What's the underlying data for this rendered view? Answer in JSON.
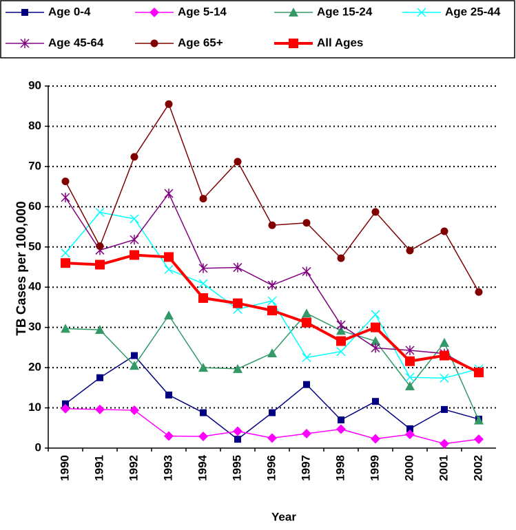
{
  "chart_data": {
    "type": "line",
    "x_label": "Year",
    "y_label": "TB Cases per 100,000",
    "categories": [
      "1990",
      "1991",
      "1992",
      "1993",
      "1994",
      "1995",
      "1996",
      "1997",
      "1998",
      "1999",
      "2000",
      "2001",
      "2002"
    ],
    "series": [
      {
        "name": "Age 0-4",
        "color": "#000080",
        "marker": "square",
        "values": [
          11,
          17.5,
          23,
          13.2,
          8.8,
          2.2,
          8.8,
          15.8,
          7,
          11.6,
          4.8,
          9.6,
          7.2
        ]
      },
      {
        "name": "Age 5-14",
        "color": "#ff00ff",
        "marker": "diamond",
        "values": [
          9.8,
          9.6,
          9.4,
          3,
          2.9,
          4.2,
          2.5,
          3.6,
          4.7,
          2.3,
          3.4,
          1.1,
          2.2
        ]
      },
      {
        "name": "Age 15-24",
        "color": "#339966",
        "marker": "triangle",
        "values": [
          29.7,
          29.4,
          20.5,
          33,
          20,
          19.7,
          23.6,
          33.5,
          29.2,
          26.6,
          15.4,
          26.2,
          6.9
        ]
      },
      {
        "name": "Age 25-44",
        "color": "#00ffff",
        "marker": "x",
        "values": [
          48.5,
          58.6,
          57,
          44.4,
          40.9,
          34.5,
          36.6,
          22.5,
          24,
          33.2,
          17.6,
          17.4,
          19.7
        ]
      },
      {
        "name": "Age 45-64",
        "color": "#800080",
        "marker": "star",
        "values": [
          62.3,
          49.2,
          51.8,
          63.3,
          44.7,
          44.9,
          40.5,
          43.9,
          30.6,
          24.9,
          24.3,
          23.5,
          18.8
        ]
      },
      {
        "name": "Age 65+",
        "color": "#800000",
        "marker": "circle",
        "values": [
          66.3,
          50.2,
          72.4,
          85.5,
          62,
          71.2,
          55.4,
          56,
          47.2,
          58.7,
          49.1,
          53.9,
          38.8
        ]
      },
      {
        "name": "All Ages",
        "color": "#ff0000",
        "marker": "big-square",
        "values": [
          46,
          45.6,
          48,
          47.5,
          37.3,
          36,
          34.2,
          31.2,
          26.6,
          30,
          21.6,
          23,
          18.8
        ]
      }
    ],
    "ylim": [
      0,
      90
    ],
    "yticks": [
      0,
      10,
      20,
      30,
      40,
      50,
      60,
      70,
      80,
      90
    ],
    "grid": true
  }
}
